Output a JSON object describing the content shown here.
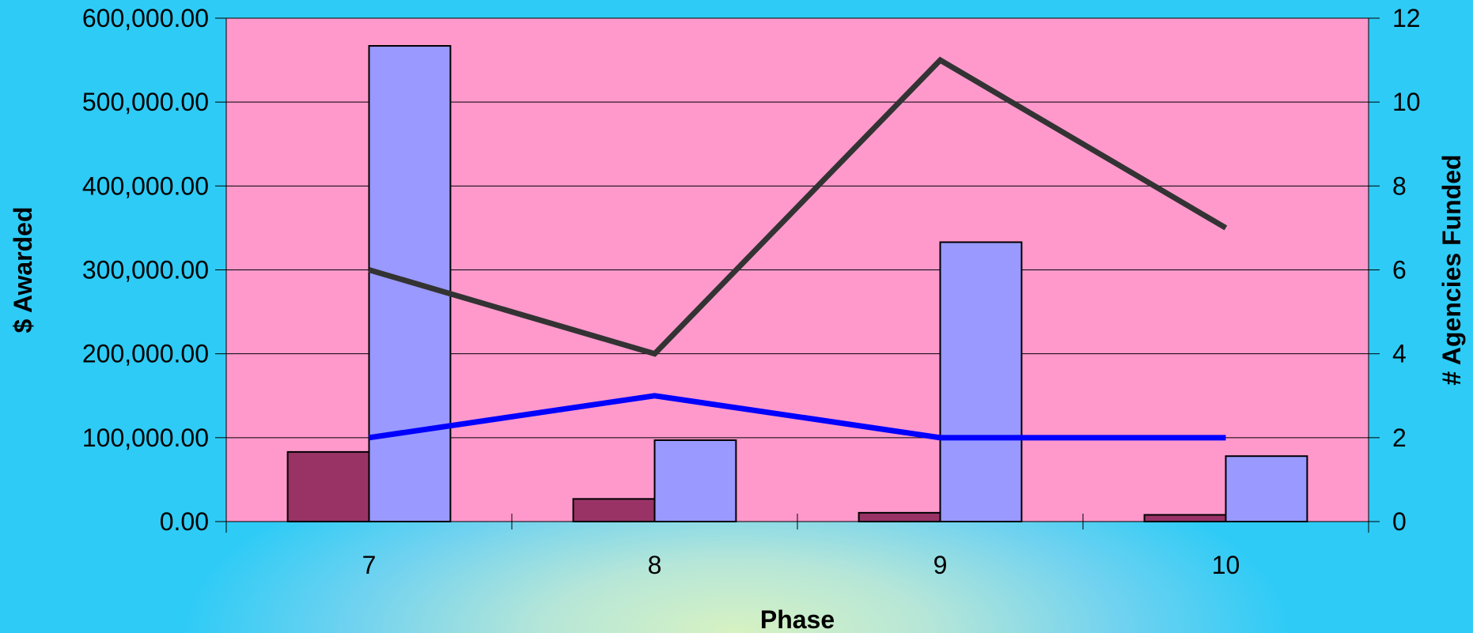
{
  "chart_data": {
    "type": "bar",
    "categories": [
      "7",
      "8",
      "9",
      "10"
    ],
    "xlabel": "Phase",
    "ylabel_left": "$ Awarded",
    "ylabel_right": "# Agencies Funded",
    "y_left_range": [
      0,
      600000
    ],
    "y_left_ticks": [
      "0.00",
      "100,000.00",
      "200,000.00",
      "300,000.00",
      "400,000.00",
      "500,000.00",
      "600,000.00"
    ],
    "y_right_range": [
      0,
      12
    ],
    "y_right_ticks": [
      "0",
      "2",
      "4",
      "6",
      "8",
      "10",
      "12"
    ],
    "grid": true,
    "plot_background": "#ff99cc",
    "bar_series": [
      {
        "axis": "left",
        "color": "#993366",
        "values": [
          83000,
          27000,
          10500,
          8000
        ]
      },
      {
        "axis": "left",
        "color": "#9999ff",
        "values": [
          567000,
          97000,
          333000,
          78000
        ]
      }
    ],
    "line_series": [
      {
        "axis": "right",
        "color": "#333333",
        "values": [
          6,
          4,
          11,
          7
        ]
      },
      {
        "axis": "right",
        "color": "#0000ff",
        "values": [
          2,
          3,
          2,
          2
        ]
      }
    ]
  }
}
